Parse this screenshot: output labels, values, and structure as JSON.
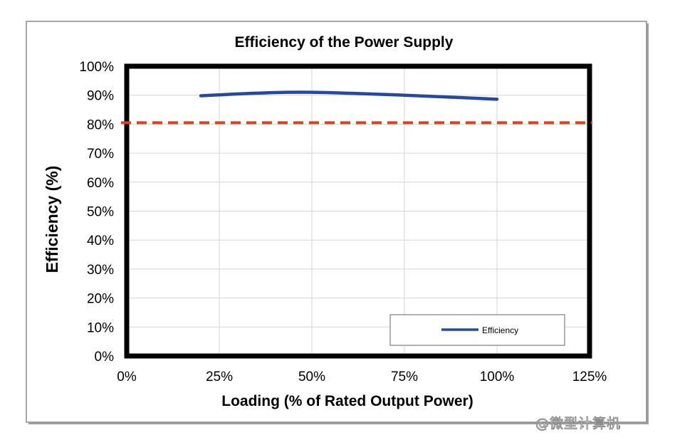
{
  "chart_data": {
    "type": "line",
    "title": "Efficiency of the Power Supply",
    "xlabel": "Loading (% of Rated Output Power)",
    "ylabel": "Efficiency (%)",
    "xlim": [
      0,
      125
    ],
    "ylim": [
      0,
      100
    ],
    "xticks": [
      "0%",
      "25%",
      "50%",
      "75%",
      "100%",
      "125%"
    ],
    "yticks": [
      "0%",
      "10%",
      "20%",
      "30%",
      "40%",
      "50%",
      "60%",
      "70%",
      "80%",
      "90%",
      "100%"
    ],
    "grid": true,
    "legend_placement": "bottom-right",
    "series": [
      {
        "name": "Efficiency",
        "color": "#2548a0",
        "x": [
          20,
          35,
          50,
          75,
          100
        ],
        "y": [
          89.8,
          90.7,
          91.0,
          90.0,
          88.6
        ]
      }
    ],
    "reference_line": {
      "y": 80.5,
      "color": "#e0401c",
      "style": "dashed"
    }
  },
  "watermark": "@微型计算机"
}
